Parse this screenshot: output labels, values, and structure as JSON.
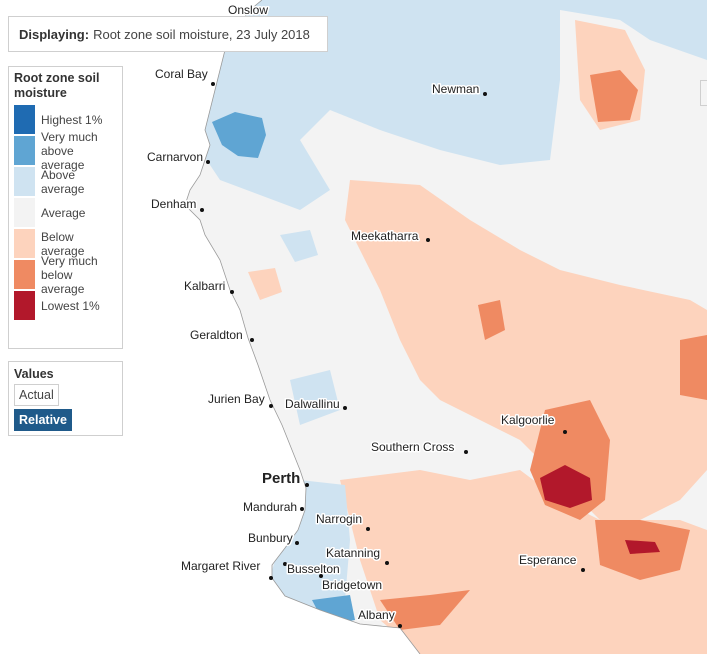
{
  "display": {
    "label": "Displaying:",
    "value": "Root zone soil moisture, 23 July 2018"
  },
  "legend": {
    "title": "Root zone soil moisture",
    "items": [
      {
        "label": "Highest 1%",
        "color": "#1f6bb2"
      },
      {
        "label": "Very much above average",
        "color": "#5fa5d3"
      },
      {
        "label": "Above average",
        "color": "#cfe3f1"
      },
      {
        "label": "Average",
        "color": "#f3f3f3"
      },
      {
        "label": "Below average",
        "color": "#fdd3bd"
      },
      {
        "label": "Very much below average",
        "color": "#ef8a62"
      },
      {
        "label": "Lowest 1%",
        "color": "#b2182b"
      }
    ]
  },
  "values_control": {
    "title": "Values",
    "options": [
      "Actual",
      "Relative"
    ],
    "selected": "Relative"
  },
  "towns": [
    {
      "name": "Onslow"
    },
    {
      "name": "Coral Bay"
    },
    {
      "name": "Newman"
    },
    {
      "name": "Carnarvon"
    },
    {
      "name": "Denham"
    },
    {
      "name": "Meekatharra"
    },
    {
      "name": "Kalbarri"
    },
    {
      "name": "Geraldton"
    },
    {
      "name": "Jurien Bay"
    },
    {
      "name": "Dalwallinu"
    },
    {
      "name": "Kalgoorlie"
    },
    {
      "name": "Southern Cross"
    },
    {
      "name": "Perth"
    },
    {
      "name": "Mandurah"
    },
    {
      "name": "Narrogin"
    },
    {
      "name": "Bunbury"
    },
    {
      "name": "Katanning"
    },
    {
      "name": "Margaret River"
    },
    {
      "name": "Busselton"
    },
    {
      "name": "Bridgetown"
    },
    {
      "name": "Esperance"
    },
    {
      "name": "Albany"
    }
  ]
}
